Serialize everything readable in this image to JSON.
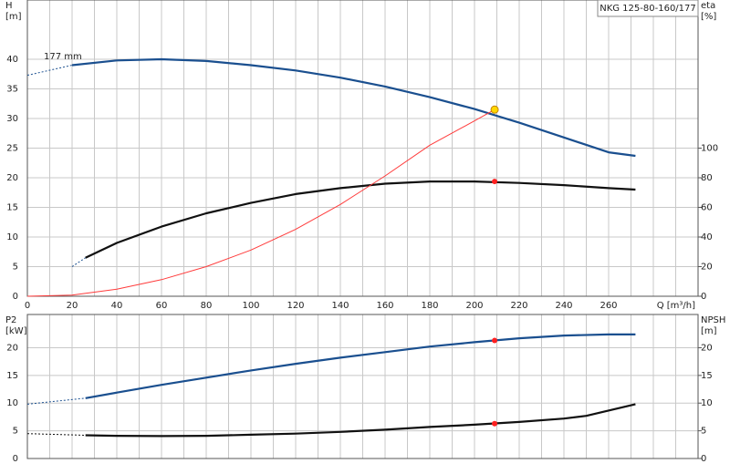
{
  "chart_data": [
    {
      "type": "line",
      "title": "NKG 125-80-160/177",
      "ylabel": "H",
      "yunit": "[m]",
      "y2label": "eta",
      "y2unit": "[%]",
      "xlabel": "Q [m³/h]",
      "annotation": "177 mm",
      "xlim": [
        0,
        300
      ],
      "xticks": [
        0,
        20,
        40,
        60,
        80,
        100,
        120,
        140,
        160,
        180,
        200,
        220,
        240,
        260
      ],
      "xgrid": [
        10,
        30,
        50,
        70,
        90,
        110,
        130,
        150,
        170,
        190,
        210,
        230,
        250,
        270,
        280,
        290,
        300
      ],
      "ylim": [
        0,
        50
      ],
      "yticks": [
        0,
        5,
        10,
        15,
        20,
        25,
        30,
        35,
        40
      ],
      "y2lim": [
        0,
        200
      ],
      "y2ticks": [
        0,
        20,
        40,
        60,
        80,
        100
      ],
      "grid": true,
      "series": [
        {
          "color": "#1a4f8f",
          "style": "dashed",
          "x": [
            0,
            20
          ],
          "values": [
            37.3,
            39
          ]
        },
        {
          "color": "#1a4f8f",
          "style": "solid",
          "x": [
            20,
            40,
            60,
            80,
            100,
            120,
            140,
            160,
            180,
            200,
            220,
            240,
            260,
            272
          ],
          "values": [
            39,
            39.8,
            40,
            39.7,
            39,
            38.1,
            36.9,
            35.4,
            33.6,
            31.6,
            29.3,
            26.8,
            24.3,
            23.7
          ]
        },
        {
          "color": "#1a4f8f",
          "style": "dashed",
          "axis": "y2",
          "x": [
            20,
            26
          ],
          "values": [
            20,
            26
          ]
        },
        {
          "color": "#111111",
          "style": "solid",
          "axis": "y2",
          "x": [
            26,
            40,
            60,
            80,
            100,
            120,
            140,
            160,
            180,
            200,
            220,
            240,
            260,
            272
          ],
          "values": [
            26,
            36,
            47,
            56,
            63,
            69,
            73,
            76,
            77.5,
            77.5,
            76.5,
            75,
            73,
            72
          ]
        },
        {
          "color": "#ff3b3b",
          "style": "thin",
          "x": [
            0,
            20,
            40,
            60,
            80,
            100,
            120,
            140,
            160,
            180,
            200,
            209
          ],
          "values": [
            0,
            0.2,
            1.2,
            2.8,
            5,
            7.8,
            11.3,
            15.5,
            20.3,
            25.5,
            29.6,
            31.5
          ]
        }
      ],
      "markers": [
        {
          "x": 209,
          "y": 31.5,
          "color": "#ffd700"
        },
        {
          "x": 209,
          "y": 77.5,
          "axis": "y2",
          "color": "#ff2020"
        }
      ]
    },
    {
      "type": "line",
      "ylabel": "P2",
      "yunit": "[kW]",
      "y2label": "NPSH",
      "y2unit": "[m]",
      "xlim": [
        0,
        300
      ],
      "xgrid": [
        0,
        10,
        20,
        30,
        40,
        50,
        60,
        70,
        80,
        90,
        100,
        110,
        120,
        130,
        140,
        150,
        160,
        170,
        180,
        190,
        200,
        210,
        220,
        230,
        240,
        250,
        260,
        270,
        280,
        290,
        300
      ],
      "ylim": [
        0,
        26
      ],
      "yticks": [
        0,
        5,
        10,
        15,
        20
      ],
      "y2lim": [
        0,
        26
      ],
      "y2ticks": [
        0,
        5,
        10,
        15,
        20
      ],
      "grid": true,
      "series": [
        {
          "color": "#1a4f8f",
          "style": "dashed",
          "x": [
            0,
            26
          ],
          "values": [
            9.8,
            10.9
          ]
        },
        {
          "color": "#1a4f8f",
          "style": "solid",
          "x": [
            26,
            40,
            60,
            80,
            100,
            120,
            140,
            160,
            180,
            200,
            220,
            240,
            260,
            272
          ],
          "values": [
            10.9,
            11.9,
            13.3,
            14.6,
            15.9,
            17.1,
            18.2,
            19.2,
            20.2,
            21,
            21.7,
            22.2,
            22.4,
            22.4
          ]
        },
        {
          "color": "#111111",
          "style": "dashed",
          "axis": "y2",
          "x": [
            0,
            26
          ],
          "values": [
            4.5,
            4.2
          ]
        },
        {
          "color": "#111111",
          "style": "solid",
          "axis": "y2",
          "x": [
            26,
            40,
            60,
            80,
            100,
            120,
            140,
            160,
            180,
            200,
            220,
            240,
            250,
            272
          ],
          "values": [
            4.2,
            4.1,
            4.05,
            4.1,
            4.3,
            4.5,
            4.8,
            5.2,
            5.7,
            6.1,
            6.6,
            7.2,
            7.7,
            9.8
          ]
        }
      ],
      "markers": [
        {
          "x": 209,
          "y": 21.3,
          "color": "#ff2020"
        },
        {
          "x": 209,
          "y": 6.3,
          "axis": "y2",
          "color": "#ff2020"
        }
      ]
    }
  ]
}
